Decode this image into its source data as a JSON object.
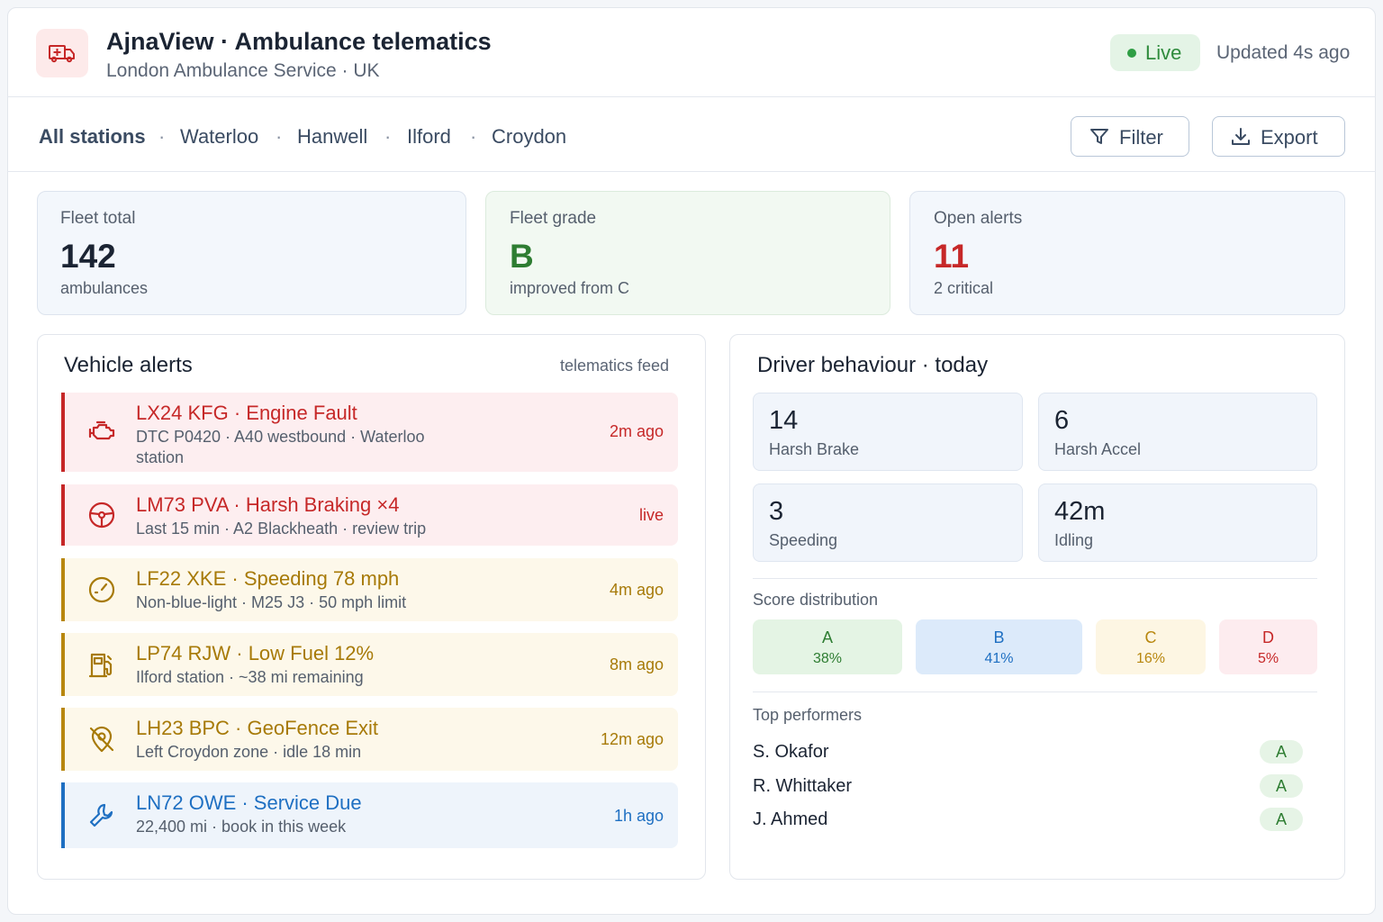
{
  "header": {
    "title": "AjnaView · Ambulance telematics",
    "subtitle": "London Ambulance Service · UK",
    "status": "Live",
    "updated": "Updated 4s ago"
  },
  "nav": {
    "stations": [
      "All stations",
      "Waterloo",
      "Hanwell",
      "Ilford",
      "Croydon"
    ],
    "filter": "Filter",
    "export": "Export"
  },
  "kpis": [
    {
      "label": "Fleet total",
      "value": 142,
      "note": "ambulances"
    },
    {
      "label": "Fleet grade",
      "value": "B",
      "note": "improved from C"
    },
    {
      "label": "Open alerts",
      "value": 11,
      "note": "2 critical"
    }
  ],
  "alerts": {
    "title": "Vehicle alerts",
    "source": "telematics feed",
    "items": [
      {
        "heading": "LX24 KFG · Engine Fault",
        "detail": "DTC P0420 · A40 westbound · Waterloo station",
        "time": "2m ago"
      },
      {
        "heading": "LM73 PVA · Harsh Braking ×4",
        "detail": "Last 15 min · A2 Blackheath · review trip",
        "time": "live"
      },
      {
        "heading": "LF22 XKE · Speeding 78 mph",
        "detail": "Non-blue-light · M25 J3 · 50 mph limit",
        "time": "4m ago"
      },
      {
        "heading": "LP74 RJW · Low Fuel 12%",
        "detail": "Ilford station · ~38 mi remaining",
        "time": "8m ago"
      },
      {
        "heading": "LH23 BPC · GeoFence Exit",
        "detail": "Left Croydon zone · idle 18 min",
        "time": "12m ago"
      },
      {
        "heading": "LN72 OWE · Service Due",
        "detail": "22,400 mi · book in this week",
        "time": "1h ago"
      }
    ]
  },
  "behaviour": {
    "title": "Driver behaviour · today",
    "metrics": [
      {
        "value": 14,
        "label": "Harsh Brake"
      },
      {
        "value": 6,
        "label": "Harsh Accel"
      },
      {
        "value": 3,
        "label": "Speeding"
      },
      {
        "value": "42m",
        "label": "Idling"
      }
    ],
    "distribution_title": "Score distribution",
    "distribution": [
      {
        "grade": "A",
        "share": "38%"
      },
      {
        "grade": "B",
        "share": "41%"
      },
      {
        "grade": "C",
        "share": "16%"
      },
      {
        "grade": "D",
        "share": "5%"
      }
    ],
    "performers_title": "Top performers",
    "performers": [
      {
        "name": "S. Okafor",
        "grade": "A"
      },
      {
        "name": "R. Whittaker",
        "grade": "A"
      },
      {
        "name": "J. Ahmed",
        "grade": "A"
      }
    ]
  }
}
